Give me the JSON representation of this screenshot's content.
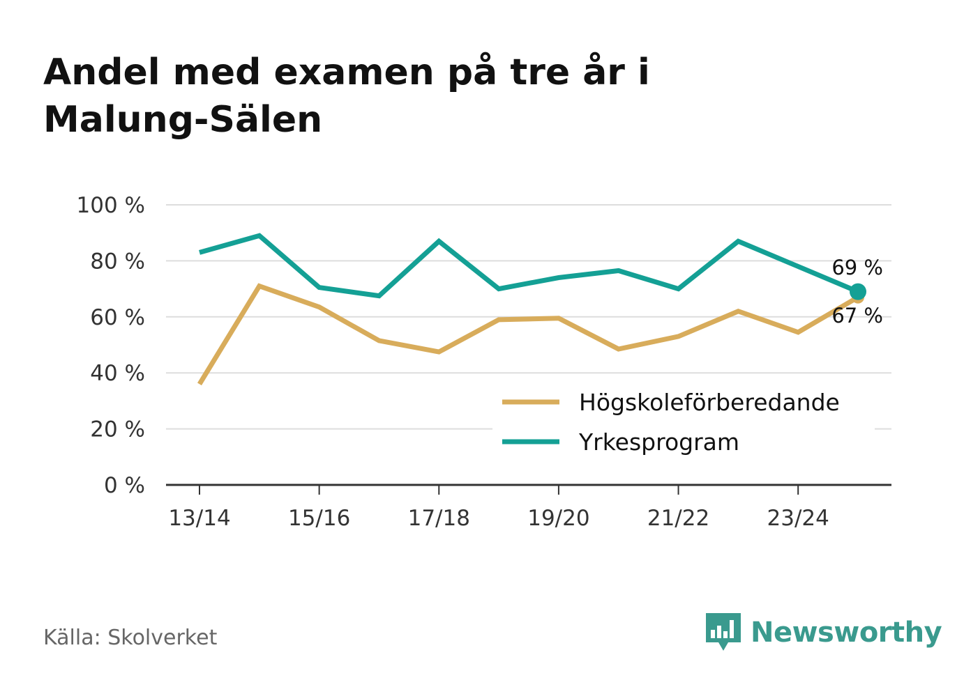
{
  "title": {
    "line1": "Andel med examen på tre år i",
    "line2": "Malung-Sälen"
  },
  "source": "Källa: Skolverket",
  "brand": "Newsworthy",
  "colors": {
    "hogskole": "#d8ac5b",
    "yrke": "#14a095",
    "grid": "#dddddd",
    "axis": "#333333",
    "brand": "#3a9a8e"
  },
  "chart_data": {
    "type": "line",
    "title": "Andel med examen på tre år i Malung-Sälen",
    "xlabel": "",
    "ylabel": "",
    "ylim": [
      0,
      100
    ],
    "yticks": [
      0,
      20,
      40,
      60,
      80,
      100
    ],
    "ytick_labels": [
      "0 %",
      "20 %",
      "40 %",
      "60 %",
      "80 %",
      "100 %"
    ],
    "x": [
      "13/14",
      "14/15",
      "15/16",
      "16/17",
      "17/18",
      "18/19",
      "19/20",
      "20/21",
      "21/22",
      "22/23",
      "23/24",
      "24/25"
    ],
    "xtick_labels": [
      "13/14",
      "15/16",
      "17/18",
      "19/20",
      "21/22",
      "23/24"
    ],
    "legend_position": "bottom-right",
    "series": [
      {
        "name": "Högskoleförberedande",
        "key": "hogskole",
        "values": [
          36,
          71,
          63.5,
          51.5,
          47.5,
          59,
          59.5,
          48.5,
          53,
          62,
          54.5,
          67
        ],
        "end_label": "67 %"
      },
      {
        "name": "Yrkesprogram",
        "key": "yrke",
        "values": [
          83,
          89,
          70.5,
          67.5,
          87,
          70,
          74,
          76.5,
          70,
          87,
          78,
          69
        ],
        "end_label": "69 %"
      }
    ]
  }
}
